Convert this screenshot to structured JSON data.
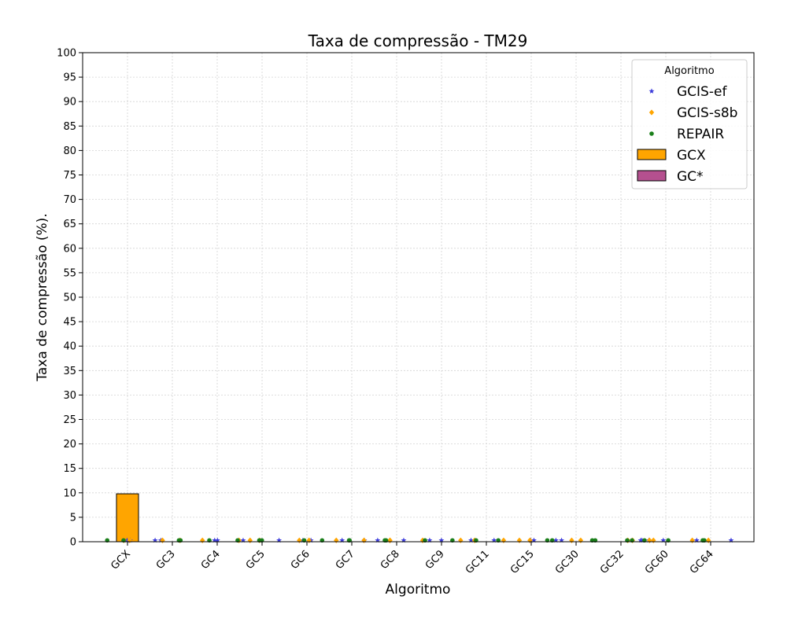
{
  "chart_data": {
    "type": "bar",
    "title": "Taxa de compressão -  TM29",
    "xlabel": "Algoritmo",
    "ylabel": "Taxa de compressão (%).",
    "ylim": [
      0,
      100
    ],
    "yticks": [
      0,
      5,
      10,
      15,
      20,
      25,
      30,
      35,
      40,
      45,
      50,
      55,
      60,
      65,
      70,
      75,
      80,
      85,
      90,
      95,
      100
    ],
    "grid": true,
    "categories": [
      "GCX",
      "GC3",
      "GC4",
      "GC5",
      "GC6",
      "GC7",
      "GC8",
      "GC9",
      "GC11",
      "GC15",
      "GC30",
      "GC32",
      "GC60",
      "GC64"
    ],
    "bars": [
      {
        "name": "GCX",
        "values": [
          9.8,
          0,
          0,
          0,
          0,
          0,
          0,
          0,
          0,
          0,
          0,
          0,
          0,
          0
        ]
      },
      {
        "name": "GC*",
        "values": [
          0,
          0,
          0,
          0,
          0,
          0,
          0,
          0,
          0,
          0,
          0,
          0,
          0,
          0
        ]
      }
    ],
    "scatter_series": [
      {
        "name": "GCIS-ef",
        "marker": "star",
        "values": [
          0.2,
          0.2,
          0.2,
          0.2,
          0.2,
          0.2,
          0.2,
          0.2,
          0.2,
          0.2,
          0.2,
          0.2,
          0.2,
          0.2
        ]
      },
      {
        "name": "GCIS-s8b",
        "marker": "diamond",
        "values": [
          0.2,
          0.2,
          0.2,
          0.2,
          0.2,
          0.2,
          0.2,
          0.2,
          0.2,
          0.2,
          0.2,
          0.2,
          0.2,
          0.2
        ]
      },
      {
        "name": "REPAIR",
        "marker": "circle",
        "values": [
          0.2,
          0.2,
          0.2,
          0.2,
          0.2,
          0.2,
          0.2,
          0.2,
          0.2,
          0.2,
          0.2,
          0.2,
          0.2,
          0.2
        ]
      }
    ],
    "legend": {
      "title": "Algoritmo",
      "position": "top-right",
      "entries": [
        {
          "label": "GCIS-ef",
          "kind": "marker",
          "marker": "star",
          "color": "#3b3bdb"
        },
        {
          "label": "GCIS-s8b",
          "kind": "marker",
          "marker": "diamond",
          "color": "#ffa500"
        },
        {
          "label": "REPAIR",
          "kind": "marker",
          "marker": "circle",
          "color": "#1a7f1a"
        },
        {
          "label": "GCX",
          "kind": "patch",
          "color": "#ffa500"
        },
        {
          "label": "GC*",
          "kind": "patch",
          "color": "#b5508f"
        }
      ]
    },
    "colors": {
      "gcis_ef": "#3b3bdb",
      "gcis_s8b": "#ffa500",
      "repair": "#1a7f1a",
      "gcx": "#ffa500",
      "gc_star": "#b5508f",
      "grid": "#d3d3d3"
    }
  }
}
